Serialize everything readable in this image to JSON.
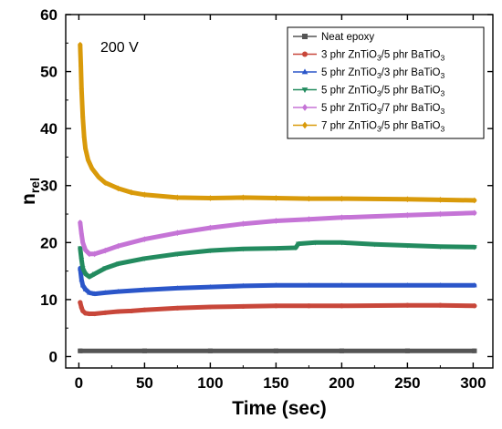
{
  "chart_data": {
    "type": "line",
    "annotation": "200 V",
    "xlabel": "Time (sec)",
    "ylabel_main": "n",
    "ylabel_sub": "rel",
    "xlim": [
      -10,
      315
    ],
    "ylim": [
      -2,
      60
    ],
    "xticks": [
      0,
      50,
      100,
      150,
      200,
      250,
      300
    ],
    "yticks": [
      0,
      10,
      20,
      30,
      40,
      50,
      60
    ],
    "grid": false,
    "legend_position": "top-right",
    "series": [
      {
        "name": "Neat epoxy",
        "legend_parts": [
          {
            "t": "Neat epoxy"
          }
        ],
        "color": "#555555",
        "marker": "square",
        "points": [
          [
            1,
            1
          ],
          [
            50,
            1
          ],
          [
            100,
            1
          ],
          [
            150,
            1
          ],
          [
            200,
            1
          ],
          [
            250,
            1
          ],
          [
            301,
            1
          ]
        ]
      },
      {
        "name": "3 phr ZnTiO3/5 phr BaTiO3",
        "legend_parts": [
          {
            "t": "3 phr ZnTiO"
          },
          {
            "t": "3",
            "sub": true
          },
          {
            "t": "/5 phr BaTiO"
          },
          {
            "t": "3",
            "sub": true
          }
        ],
        "color": "#c8473a",
        "marker": "circle",
        "points": [
          [
            1,
            9.5
          ],
          [
            2,
            8.6
          ],
          [
            3,
            8.0
          ],
          [
            5,
            7.6
          ],
          [
            8,
            7.5
          ],
          [
            12,
            7.5
          ],
          [
            20,
            7.7
          ],
          [
            30,
            7.9
          ],
          [
            40,
            8.0
          ],
          [
            50,
            8.2
          ],
          [
            75,
            8.5
          ],
          [
            100,
            8.7
          ],
          [
            125,
            8.8
          ],
          [
            150,
            8.9
          ],
          [
            175,
            8.9
          ],
          [
            200,
            8.9
          ],
          [
            250,
            9.0
          ],
          [
            275,
            9.0
          ],
          [
            301,
            8.9
          ]
        ]
      },
      {
        "name": "5 phr ZnTiO3/3 phr BaTiO3",
        "legend_parts": [
          {
            "t": "5 phr ZnTiO"
          },
          {
            "t": "3",
            "sub": true
          },
          {
            "t": "/3 phr BaTiO"
          },
          {
            "t": "3",
            "sub": true
          }
        ],
        "color": "#2b56c9",
        "marker": "triangle",
        "points": [
          [
            1,
            15.5
          ],
          [
            2,
            13.5
          ],
          [
            3,
            12.5
          ],
          [
            5,
            11.8
          ],
          [
            8,
            11.2
          ],
          [
            12,
            11.0
          ],
          [
            20,
            11.2
          ],
          [
            30,
            11.4
          ],
          [
            50,
            11.7
          ],
          [
            75,
            12.0
          ],
          [
            100,
            12.2
          ],
          [
            125,
            12.4
          ],
          [
            150,
            12.5
          ],
          [
            175,
            12.5
          ],
          [
            200,
            12.5
          ],
          [
            250,
            12.5
          ],
          [
            275,
            12.5
          ],
          [
            301,
            12.5
          ]
        ]
      },
      {
        "name": "5 phr ZnTiO3/5 phr BaTiO3",
        "legend_parts": [
          {
            "t": "5 phr ZnTiO"
          },
          {
            "t": "3",
            "sub": true
          },
          {
            "t": "/5 phr BaTiO"
          },
          {
            "t": "3",
            "sub": true
          }
        ],
        "color": "#238b5f",
        "marker": "triangle-down",
        "points": [
          [
            1,
            19.0
          ],
          [
            2,
            17.0
          ],
          [
            3,
            15.5
          ],
          [
            5,
            14.5
          ],
          [
            8,
            14.0
          ],
          [
            12,
            14.5
          ],
          [
            20,
            15.5
          ],
          [
            30,
            16.3
          ],
          [
            50,
            17.2
          ],
          [
            75,
            18.0
          ],
          [
            100,
            18.6
          ],
          [
            125,
            18.9
          ],
          [
            150,
            19.0
          ],
          [
            165,
            19.1
          ],
          [
            167,
            19.8
          ],
          [
            180,
            20.0
          ],
          [
            200,
            20.0
          ],
          [
            225,
            19.7
          ],
          [
            250,
            19.5
          ],
          [
            275,
            19.3
          ],
          [
            301,
            19.2
          ]
        ]
      },
      {
        "name": "5 phr ZnTiO3/7 phr BaTiO3",
        "legend_parts": [
          {
            "t": "5 phr ZnTiO"
          },
          {
            "t": "3",
            "sub": true
          },
          {
            "t": "/7 phr BaTiO"
          },
          {
            "t": "3",
            "sub": true
          }
        ],
        "color": "#c574d6",
        "marker": "diamond",
        "points": [
          [
            1,
            23.5
          ],
          [
            2,
            21.5
          ],
          [
            3,
            20.0
          ],
          [
            5,
            18.7
          ],
          [
            8,
            18.0
          ],
          [
            12,
            18.0
          ],
          [
            20,
            18.6
          ],
          [
            30,
            19.4
          ],
          [
            50,
            20.6
          ],
          [
            75,
            21.7
          ],
          [
            100,
            22.6
          ],
          [
            125,
            23.3
          ],
          [
            150,
            23.8
          ],
          [
            175,
            24.1
          ],
          [
            200,
            24.4
          ],
          [
            250,
            24.8
          ],
          [
            275,
            25.0
          ],
          [
            301,
            25.2
          ]
        ]
      },
      {
        "name": "7 phr ZnTiO3/5 phr BaTiO3",
        "legend_parts": [
          {
            "t": "7 phr ZnTiO"
          },
          {
            "t": "3",
            "sub": true
          },
          {
            "t": "/5 phr BaTiO"
          },
          {
            "t": "3",
            "sub": true
          }
        ],
        "color": "#d99a0a",
        "marker": "diamond",
        "points": [
          [
            1,
            54.7
          ],
          [
            1.5,
            51
          ],
          [
            2,
            47
          ],
          [
            3,
            42
          ],
          [
            4,
            38.5
          ],
          [
            5,
            36.5
          ],
          [
            7,
            34.5
          ],
          [
            10,
            33.0
          ],
          [
            15,
            31.5
          ],
          [
            20,
            30.5
          ],
          [
            30,
            29.5
          ],
          [
            40,
            28.8
          ],
          [
            50,
            28.4
          ],
          [
            75,
            27.9
          ],
          [
            100,
            27.8
          ],
          [
            125,
            27.9
          ],
          [
            150,
            27.8
          ],
          [
            175,
            27.7
          ],
          [
            200,
            27.7
          ],
          [
            250,
            27.6
          ],
          [
            275,
            27.5
          ],
          [
            301,
            27.4
          ]
        ]
      }
    ]
  }
}
